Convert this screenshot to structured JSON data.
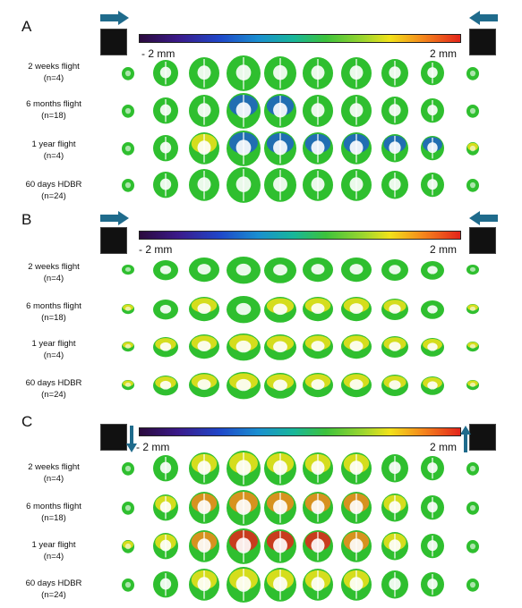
{
  "panels": [
    {
      "letter": "A",
      "cb_min": "- 2 mm",
      "cb_max": "2 mm",
      "view": "coronal",
      "arrows": "horizontal",
      "rows": [
        {
          "l1": "2 weeks flight",
          "l2": "(n=4)"
        },
        {
          "l1": "6 months flight",
          "l2": "(n=18)"
        },
        {
          "l1": "1 year flight",
          "l2": "(n=4)"
        },
        {
          "l1": "60 days HDBR",
          "l2": "(n=24)"
        }
      ]
    },
    {
      "letter": "B",
      "cb_min": "- 2 mm",
      "cb_max": "2 mm",
      "view": "sagittal",
      "arrows": "horizontal",
      "rows": [
        {
          "l1": "2 weeks flight",
          "l2": "(n=4)"
        },
        {
          "l1": "6 months flight",
          "l2": "(n=18)"
        },
        {
          "l1": "1 year flight",
          "l2": "(n=4)"
        },
        {
          "l1": "60 days HDBR",
          "l2": "(n=24)"
        }
      ]
    },
    {
      "letter": "C",
      "cb_min": "- 2 mm",
      "cb_max": "2 mm",
      "view": "coronal",
      "arrows": "vertical",
      "rows": [
        {
          "l1": "2 weeks flight",
          "l2": "(n=4)"
        },
        {
          "l1": "6 months flight",
          "l2": "(n=18)"
        },
        {
          "l1": "1 year flight",
          "l2": "(n=4)"
        },
        {
          "l1": "60 days HDBR",
          "l2": "(n=24)"
        }
      ]
    }
  ],
  "colors": {
    "green": "#2fbf2f",
    "yellow": "#f2e21a",
    "orange": "#f58a1c",
    "red": "#e3241b",
    "blue": "#1f5fc9",
    "arrow": "#1f6b8c"
  }
}
